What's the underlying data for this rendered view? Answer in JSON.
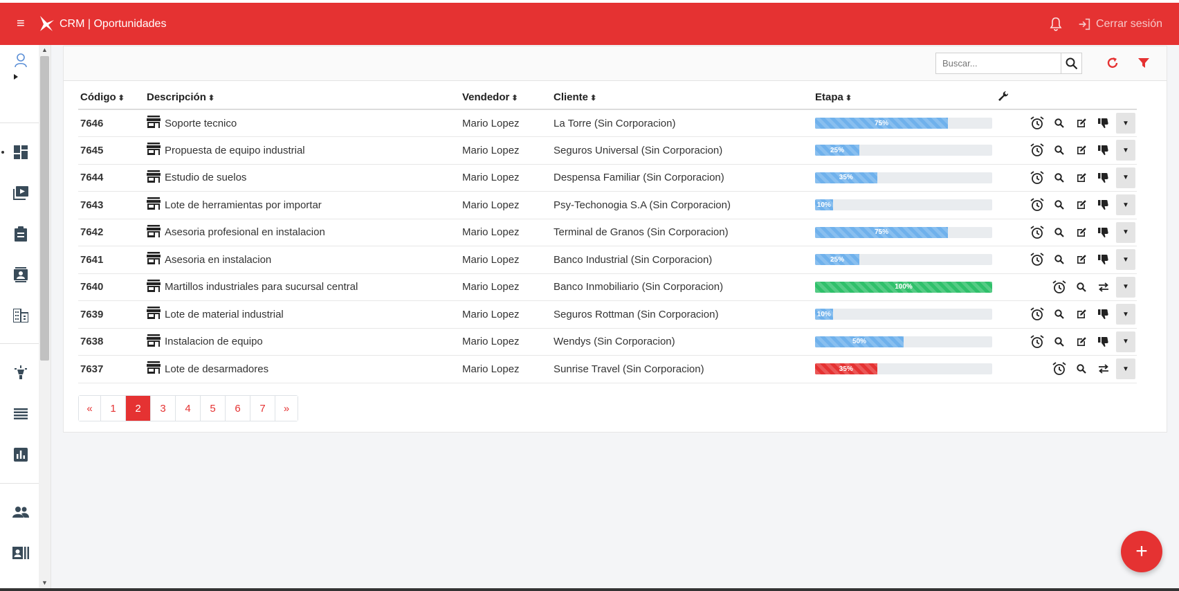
{
  "header": {
    "title": "CRM | Oportunidades",
    "logout_label": "Cerrar sesión",
    "brand_color": "#e53232"
  },
  "toolbar": {
    "search_placeholder": "Buscar..."
  },
  "table": {
    "columns": [
      "Código",
      "Descripción",
      "Vendedor",
      "Cliente",
      "Etapa"
    ],
    "rows": [
      {
        "code": "7646",
        "desc": "Soporte tecnico",
        "seller": "Mario Lopez",
        "client": "La Torre (Sin Corporacion)",
        "stage": 75,
        "stage_label": "75%",
        "color": "#6fb1ec",
        "variant": "full"
      },
      {
        "code": "7645",
        "desc": "Propuesta de equipo industrial",
        "seller": "Mario Lopez",
        "client": "Seguros Universal (Sin Corporacion)",
        "stage": 25,
        "stage_label": "25%",
        "color": "#6fb1ec",
        "variant": "full"
      },
      {
        "code": "7644",
        "desc": "Estudio de suelos",
        "seller": "Mario Lopez",
        "client": "Despensa Familiar (Sin Corporacion)",
        "stage": 35,
        "stage_label": "35%",
        "color": "#6fb1ec",
        "variant": "full"
      },
      {
        "code": "7643",
        "desc": "Lote de herramientas por importar",
        "seller": "Mario Lopez",
        "client": "Psy-Techonogia S.A (Sin Corporacion)",
        "stage": 10,
        "stage_label": "10%",
        "color": "#6fb1ec",
        "variant": "full"
      },
      {
        "code": "7642",
        "desc": "Asesoria profesional en instalacion",
        "seller": "Mario Lopez",
        "client": "Terminal de Granos (Sin Corporacion)",
        "stage": 75,
        "stage_label": "75%",
        "color": "#6fb1ec",
        "variant": "full"
      },
      {
        "code": "7641",
        "desc": "Asesoria en instalacion",
        "seller": "Mario Lopez",
        "client": "Banco Industrial (Sin Corporacion)",
        "stage": 25,
        "stage_label": "25%",
        "color": "#6fb1ec",
        "variant": "full"
      },
      {
        "code": "7640",
        "desc": "Martillos industriales para sucursal central",
        "seller": "Mario Lopez",
        "client": "Banco Inmobiliario (Sin Corporacion)",
        "stage": 100,
        "stage_label": "100%",
        "color": "#2fc06a",
        "variant": "closed"
      },
      {
        "code": "7639",
        "desc": "Lote de material industrial",
        "seller": "Mario Lopez",
        "client": "Seguros Rottman (Sin Corporacion)",
        "stage": 10,
        "stage_label": "10%",
        "color": "#6fb1ec",
        "variant": "full"
      },
      {
        "code": "7638",
        "desc": "Instalacion de equipo",
        "seller": "Mario Lopez",
        "client": "Wendys (Sin Corporacion)",
        "stage": 50,
        "stage_label": "50%",
        "color": "#6fb1ec",
        "variant": "full"
      },
      {
        "code": "7637",
        "desc": "Lote de desarmadores",
        "seller": "Mario Lopez",
        "client": "Sunrise Travel (Sin Corporacion)",
        "stage": 35,
        "stage_label": "35%",
        "color": "#e53232",
        "variant": "closed"
      }
    ]
  },
  "pagination": {
    "prev": "«",
    "next": "»",
    "pages": [
      "1",
      "2",
      "3",
      "4",
      "5",
      "6",
      "7"
    ],
    "current": "2"
  },
  "fab_label": "+",
  "icons": [
    "hamburger-icon",
    "bell-icon",
    "logout-icon",
    "search-icon",
    "refresh-icon",
    "filter-icon",
    "wrench-icon",
    "store-icon",
    "alarm-icon",
    "edit-icon",
    "thumbs-down-icon",
    "transfer-icon"
  ]
}
